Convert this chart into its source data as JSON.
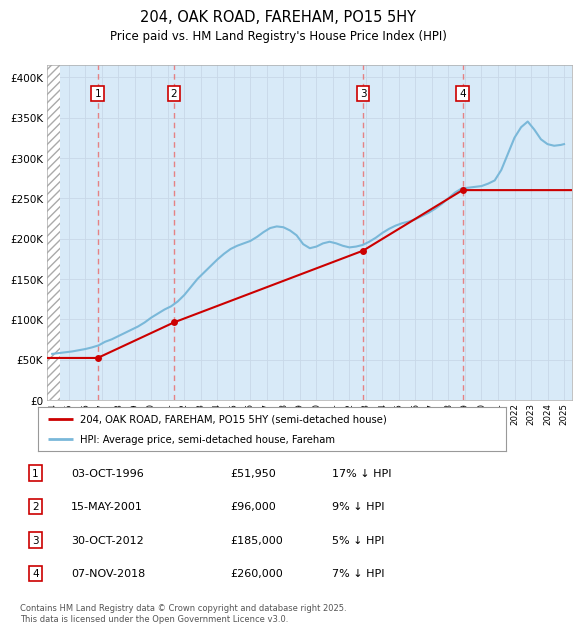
{
  "title": "204, OAK ROAD, FAREHAM, PO15 5HY",
  "subtitle": "Price paid vs. HM Land Registry's House Price Index (HPI)",
  "ytick_values": [
    0,
    50000,
    100000,
    150000,
    200000,
    250000,
    300000,
    350000,
    400000
  ],
  "ylim": [
    0,
    415000
  ],
  "xlim_start": 1993.7,
  "xlim_end": 2025.5,
  "hatch_end": 1994.5,
  "sale_dates": [
    1996.75,
    2001.37,
    2012.83,
    2018.85
  ],
  "sale_prices": [
    51950,
    96000,
    185000,
    260000
  ],
  "sale_labels": [
    "1",
    "2",
    "3",
    "4"
  ],
  "sale_info": [
    [
      "1",
      "03-OCT-1996",
      "£51,950",
      "17% ↓ HPI"
    ],
    [
      "2",
      "15-MAY-2001",
      "£96,000",
      "9% ↓ HPI"
    ],
    [
      "3",
      "30-OCT-2012",
      "£185,000",
      "5% ↓ HPI"
    ],
    [
      "4",
      "07-NOV-2018",
      "£260,000",
      "7% ↓ HPI"
    ]
  ],
  "hpi_color": "#7ab8d9",
  "sale_line_color": "#cc0000",
  "dashed_line_color": "#e87070",
  "grid_color": "#c8d8e8",
  "background_color": "#d8eaf8",
  "legend_label_red": "204, OAK ROAD, FAREHAM, PO15 5HY (semi-detached house)",
  "legend_label_blue": "HPI: Average price, semi-detached house, Fareham",
  "footer": "Contains HM Land Registry data © Crown copyright and database right 2025.\nThis data is licensed under the Open Government Licence v3.0.",
  "hpi_x": [
    1994.0,
    1994.4,
    1994.8,
    1995.2,
    1995.6,
    1996.0,
    1996.4,
    1996.8,
    1997.2,
    1997.6,
    1998.0,
    1998.4,
    1998.8,
    1999.2,
    1999.6,
    2000.0,
    2000.4,
    2000.8,
    2001.2,
    2001.6,
    2002.0,
    2002.4,
    2002.8,
    2003.2,
    2003.6,
    2004.0,
    2004.4,
    2004.8,
    2005.2,
    2005.6,
    2006.0,
    2006.4,
    2006.8,
    2007.2,
    2007.6,
    2008.0,
    2008.4,
    2008.8,
    2009.2,
    2009.6,
    2010.0,
    2010.4,
    2010.8,
    2011.2,
    2011.6,
    2012.0,
    2012.4,
    2012.8,
    2013.2,
    2013.6,
    2014.0,
    2014.4,
    2014.8,
    2015.2,
    2015.6,
    2016.0,
    2016.4,
    2016.8,
    2017.2,
    2017.6,
    2018.0,
    2018.4,
    2018.8,
    2019.2,
    2019.6,
    2020.0,
    2020.4,
    2020.8,
    2021.2,
    2021.6,
    2022.0,
    2022.4,
    2022.8,
    2023.2,
    2023.6,
    2024.0,
    2024.4,
    2024.8,
    2025.0
  ],
  "hpi_y": [
    57000,
    58000,
    59000,
    60000,
    61500,
    63000,
    65000,
    67500,
    72000,
    75000,
    79000,
    83000,
    87000,
    91000,
    96000,
    102000,
    107000,
    112000,
    116000,
    122000,
    130000,
    140000,
    150000,
    158000,
    166000,
    174000,
    181000,
    187000,
    191000,
    194000,
    197000,
    202000,
    208000,
    213000,
    215000,
    214000,
    210000,
    204000,
    193000,
    188000,
    190000,
    194000,
    196000,
    194000,
    191000,
    189000,
    190000,
    192000,
    196000,
    201000,
    207000,
    212000,
    216000,
    219000,
    221000,
    224000,
    228000,
    232000,
    237000,
    243000,
    250000,
    257000,
    262000,
    263000,
    264000,
    265000,
    268000,
    272000,
    285000,
    305000,
    325000,
    338000,
    345000,
    335000,
    323000,
    317000,
    315000,
    316000,
    317000
  ]
}
